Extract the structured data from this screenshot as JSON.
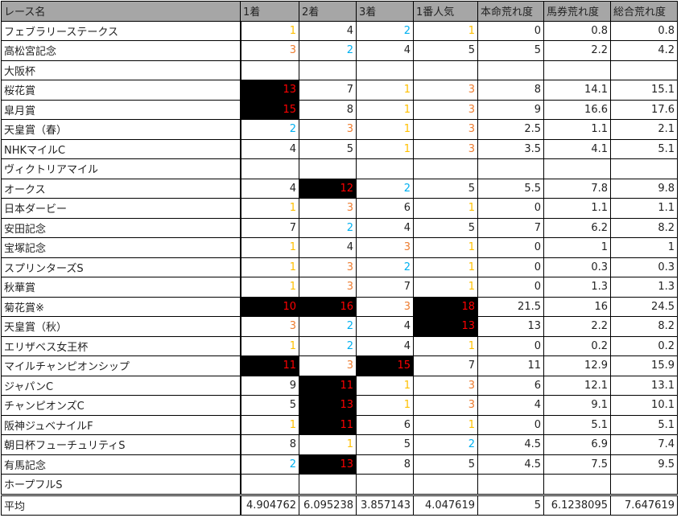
{
  "colors": {
    "first": "#ffc000",
    "second": "#00b0f0",
    "third": "#ed7d31",
    "long_shot_text": "#ff0000",
    "long_shot_bg": "#000000",
    "header_bg": "#a6a6a6"
  },
  "headers": [
    "レース名",
    "1着",
    "2着",
    "3着",
    "1番人気",
    "本命荒れ度",
    "馬券荒れ度",
    "総合荒れ度"
  ],
  "rows": [
    [
      "フェブラリーステークス",
      "1",
      "4",
      "2",
      "1",
      "0",
      "0.8",
      "0.8"
    ],
    [
      "高松宮記念",
      "3",
      "2",
      "4",
      "5",
      "5",
      "2.2",
      "4.2"
    ],
    [
      "大阪杯",
      "",
      "",
      "",
      "",
      "",
      "",
      ""
    ],
    [
      "桜花賞",
      "13",
      "7",
      "1",
      "3",
      "8",
      "14.1",
      "15.1"
    ],
    [
      "皐月賞",
      "15",
      "8",
      "1",
      "3",
      "9",
      "16.6",
      "17.6"
    ],
    [
      "天皇賞（春）",
      "2",
      "3",
      "1",
      "3",
      "2.5",
      "1.1",
      "2.1"
    ],
    [
      "NHKマイルC",
      "4",
      "5",
      "1",
      "3",
      "3.5",
      "4.1",
      "5.1"
    ],
    [
      "ヴィクトリアマイル",
      "",
      "",
      "",
      "",
      "",
      "",
      ""
    ],
    [
      "オークス",
      "4",
      "12",
      "2",
      "5",
      "5.5",
      "7.8",
      "9.8"
    ],
    [
      "日本ダービー",
      "1",
      "3",
      "6",
      "1",
      "0",
      "1.1",
      "1.1"
    ],
    [
      "安田記念",
      "7",
      "2",
      "4",
      "5",
      "7",
      "6.2",
      "8.2"
    ],
    [
      "宝塚記念",
      "1",
      "4",
      "3",
      "1",
      "0",
      "1",
      "1"
    ],
    [
      "スプリンターズS",
      "1",
      "3",
      "2",
      "1",
      "0",
      "0.3",
      "0.3"
    ],
    [
      "秋華賞",
      "1",
      "3",
      "7",
      "1",
      "0",
      "1.3",
      "1.3"
    ],
    [
      "菊花賞※",
      "10",
      "16",
      "3",
      "18",
      "21.5",
      "16",
      "24.5"
    ],
    [
      "天皇賞（秋）",
      "3",
      "2",
      "4",
      "13",
      "13",
      "2.2",
      "8.2"
    ],
    [
      "エリザベス女王杯",
      "1",
      "2",
      "4",
      "1",
      "0",
      "0.2",
      "0.2"
    ],
    [
      "マイルチャンピオンシップ",
      "11",
      "3",
      "15",
      "7",
      "11",
      "12.9",
      "15.9"
    ],
    [
      "ジャパンC",
      "9",
      "11",
      "1",
      "3",
      "6",
      "12.1",
      "13.1"
    ],
    [
      "チャンピオンズC",
      "5",
      "13",
      "1",
      "3",
      "4",
      "9.1",
      "10.1"
    ],
    [
      "阪神ジュベナイルF",
      "1",
      "11",
      "6",
      "1",
      "0",
      "5.1",
      "5.1"
    ],
    [
      "朝日杯フューチュリティS",
      "8",
      "1",
      "5",
      "2",
      "4.5",
      "6.9",
      "7.4"
    ],
    [
      "有馬記念",
      "2",
      "13",
      "8",
      "5",
      "4.5",
      "7.5",
      "9.5"
    ],
    [
      "ホープフルS",
      "",
      "",
      "",
      "",
      "",
      "",
      ""
    ]
  ],
  "average": [
    "平均",
    "4.904762",
    "6.095238",
    "3.857143",
    "4.047619",
    "5",
    "6.1238095",
    "7.647619"
  ]
}
